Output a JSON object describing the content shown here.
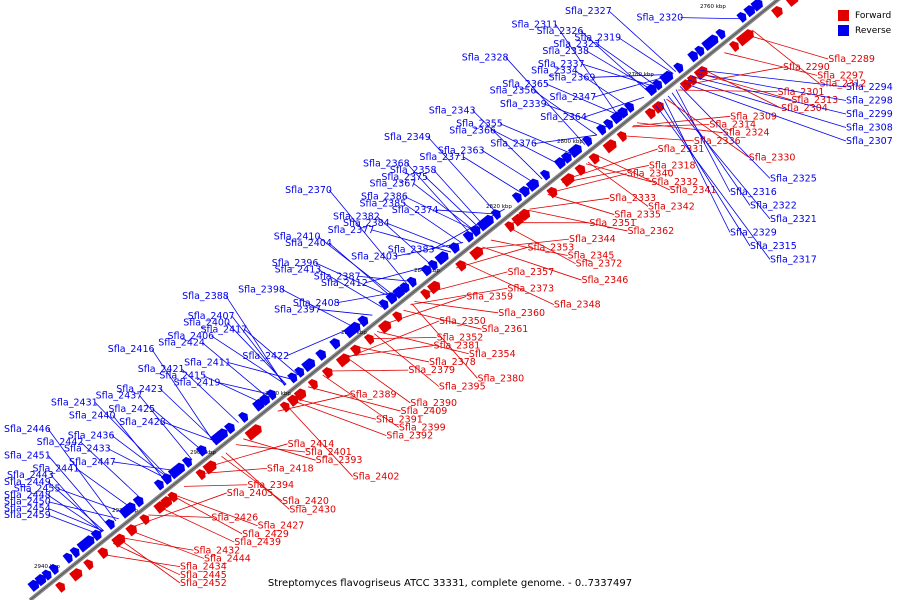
{
  "caption": "Streptomyces flavogriseus ATCC 33331, complete genome. - 0..7337497",
  "legend": [
    {
      "label": "Forward",
      "color": "#e00000"
    },
    {
      "label": "Reverse",
      "color": "#0000ee"
    }
  ],
  "colors": {
    "forward": "#e00000",
    "reverse": "#0000ee",
    "backbone": "#888888"
  },
  "scale_ticks": [
    "2760 kbp",
    "2780 kbp",
    "2800 kbp",
    "2820 kbp",
    "2840 kbp",
    "2860 kbp",
    "2880 kbp",
    "2900 kbp",
    "2920 kbp",
    "2940 kbp"
  ],
  "reverse_genes": [
    "Sfla_2327",
    "Sfla_2320",
    "Sfla_2311",
    "Sfla_2326",
    "Sfla_2319",
    "Sfla_2323",
    "Sfla_2338",
    "Sfla_2328",
    "Sfla_2337",
    "Sfla_2334",
    "Sfla_2369",
    "Sfla_2365",
    "Sfla_2356",
    "Sfla_2347",
    "Sfla_2339",
    "Sfla_2343",
    "Sfla_2364",
    "Sfla_2355",
    "Sfla_2366",
    "Sfla_2349",
    "Sfla_2376",
    "Sfla_2363",
    "Sfla_2371",
    "Sfla_2368",
    "Sfla_2358",
    "Sfla_2375",
    "Sfla_2367",
    "Sfla_2370",
    "Sfla_2386",
    "Sfla_2385",
    "Sfla_2374",
    "Sfla_2382",
    "Sfla_2384",
    "Sfla_2377",
    "Sfla_2410",
    "Sfla_2404",
    "Sfla_2383",
    "Sfla_2403",
    "Sfla_2396",
    "Sfla_2413",
    "Sfla_2387",
    "Sfla_2412",
    "Sfla_2398",
    "Sfla_2388",
    "Sfla_2408",
    "Sfla_2397",
    "Sfla_2407",
    "Sfla_2400",
    "Sfla_2417",
    "Sfla_2406",
    "Sfla_2424",
    "Sfla_2416",
    "Sfla_2422",
    "Sfla_2411",
    "Sfla_2421",
    "Sfla_2415",
    "Sfla_2419",
    "Sfla_2423",
    "Sfla_2437",
    "Sfla_2431",
    "Sfla_2425",
    "Sfla_2440",
    "Sfla_2428",
    "Sfla_2446",
    "Sfla_2436",
    "Sfla_2442",
    "Sfla_2433",
    "Sfla_2451",
    "Sfla_2447",
    "Sfla_2441",
    "Sfla_2443",
    "Sfla_2449",
    "Sfla_2455",
    "Sfla_2448",
    "Sfla_2450",
    "Sfla_2454",
    "Sfla_2459",
    "Sfla_2294",
    "Sfla_2298",
    "Sfla_2299",
    "Sfla_2308",
    "Sfla_2307",
    "Sfla_2325",
    "Sfla_2316",
    "Sfla_2322",
    "Sfla_2321",
    "Sfla_2329",
    "Sfla_2315",
    "Sfla_2317"
  ],
  "forward_genes": [
    "Sfla_2289",
    "Sfla_2290",
    "Sfla_2297",
    "Sfla_2312",
    "Sfla_2301",
    "Sfla_2313",
    "Sfla_2304",
    "Sfla_2309",
    "Sfla_2314",
    "Sfla_2324",
    "Sfla_2336",
    "Sfla_2331",
    "Sfla_2330",
    "Sfla_2318",
    "Sfla_2340",
    "Sfla_2332",
    "Sfla_2341",
    "Sfla_2333",
    "Sfla_2342",
    "Sfla_2335",
    "Sfla_2351",
    "Sfla_2362",
    "Sfla_2344",
    "Sfla_2353",
    "Sfla_2345",
    "Sfla_2372",
    "Sfla_2357",
    "Sfla_2346",
    "Sfla_2373",
    "Sfla_2359",
    "Sfla_2348",
    "Sfla_2360",
    "Sfla_2350",
    "Sfla_2361",
    "Sfla_2352",
    "Sfla_2381",
    "Sfla_2354",
    "Sfla_2378",
    "Sfla_2379",
    "Sfla_2380",
    "Sfla_2395",
    "Sfla_2389",
    "Sfla_2390",
    "Sfla_2409",
    "Sfla_2391",
    "Sfla_2399",
    "Sfla_2392",
    "Sfla_2414",
    "Sfla_2401",
    "Sfla_2393",
    "Sfla_2418",
    "Sfla_2402",
    "Sfla_2394",
    "Sfla_2405",
    "Sfla_2420",
    "Sfla_2430",
    "Sfla_2426",
    "Sfla_2427",
    "Sfla_2429",
    "Sfla_2439",
    "Sfla_2432",
    "Sfla_2444",
    "Sfla_2434",
    "Sfla_2445",
    "Sfla_2452"
  ]
}
